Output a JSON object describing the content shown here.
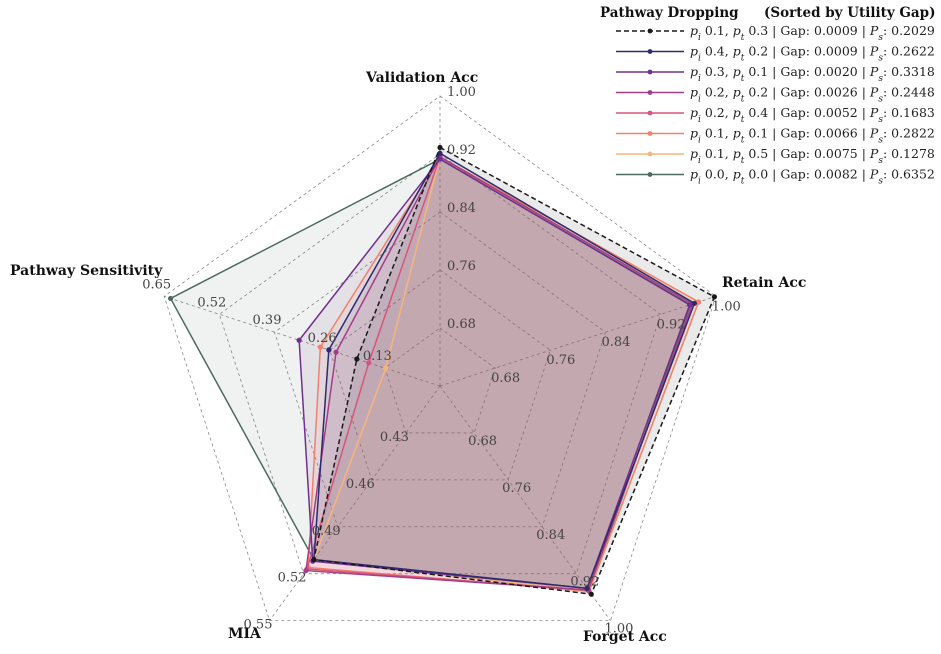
{
  "chart_data": {
    "type": "radar",
    "title": "",
    "legend": {
      "title": "Pathway Dropping",
      "subtitle": "(Sorted by Utility Gap)",
      "placement": "top-right"
    },
    "axes": [
      {
        "name": "Validation Acc",
        "ticks": [
          "0.68",
          "0.76",
          "0.84",
          "0.92",
          "1.00"
        ]
      },
      {
        "name": "Retain Acc",
        "ticks": [
          "0.68",
          "0.76",
          "0.84",
          "0.92",
          "1.00"
        ]
      },
      {
        "name": "Forget Acc",
        "ticks": [
          "0.68",
          "0.76",
          "0.84",
          "0.92",
          "1.00"
        ]
      },
      {
        "name": "MIA",
        "ticks": [
          "0.43",
          "0.46",
          "0.49",
          "0.52",
          "0.55"
        ]
      },
      {
        "name": "Pathway Sensitivity",
        "ticks": [
          "0.13",
          "0.26",
          "0.39",
          "0.52",
          "0.65"
        ]
      }
    ],
    "series": [
      {
        "name": "p_i 0.1, p_t 0.3 | Gap: 0.0009 | P_s: 0.2029",
        "pi": "0.1",
        "pt": "0.3",
        "gap": "0.0009",
        "ps": "0.2029",
        "color": "#1a1a1a",
        "dashed": true,
        "values": [
          0.929,
          0.998,
          0.955,
          0.511,
          0.196
        ]
      },
      {
        "name": "p_i 0.4, p_t 0.2 | Gap: 0.0009 | P_s: 0.2622",
        "pi": "0.4",
        "pt": "0.2",
        "gap": "0.0009",
        "ps": "0.2622",
        "color": "#2f2a6e",
        "dashed": false,
        "values": [
          0.921,
          0.969,
          0.945,
          0.511,
          0.262
        ]
      },
      {
        "name": "p_i 0.3, p_t 0.1 | Gap: 0.0020 | P_s: 0.3318",
        "pi": "0.3",
        "pt": "0.1",
        "gap": "0.0020",
        "ps": "0.3318",
        "color": "#70308c",
        "dashed": false,
        "values": [
          0.913,
          0.962,
          0.945,
          0.512,
          0.332
        ]
      },
      {
        "name": "p_i 0.2, p_t 0.2 | Gap: 0.0026 | P_s: 0.2448",
        "pi": "0.2",
        "pt": "0.2",
        "gap": "0.0026",
        "ps": "0.2448",
        "color": "#a53d88",
        "dashed": false,
        "values": [
          0.916,
          0.966,
          0.948,
          0.518,
          0.245
        ]
      },
      {
        "name": "p_i 0.2, p_t 0.4 | Gap: 0.0052 | P_s: 0.1683",
        "pi": "0.2",
        "pt": "0.4",
        "gap": "0.0052",
        "ps": "0.1683",
        "color": "#d8557a",
        "dashed": false,
        "values": [
          0.916,
          0.966,
          0.948,
          0.517,
          0.168
        ]
      },
      {
        "name": "p_i 0.1, p_t 0.1 | Gap: 0.0066 | P_s: 0.2822",
        "pi": "0.1",
        "pt": "0.1",
        "gap": "0.0066",
        "ps": "0.2822",
        "color": "#f0826a",
        "dashed": false,
        "values": [
          0.916,
          0.975,
          0.95,
          0.516,
          0.282
        ]
      },
      {
        "name": "p_i 0.1, p_t 0.5 | Gap: 0.0075 | P_s: 0.1278",
        "pi": "0.1",
        "pt": "0.5",
        "gap": "0.0075",
        "ps": "0.1278",
        "color": "#f6b57c",
        "dashed": false,
        "values": [
          0.916,
          0.975,
          0.95,
          0.511,
          0.128
        ]
      },
      {
        "name": "p_i 0.0, p_t 0.0 | Gap: 0.0082 | P_s: 0.6352",
        "pi": "0.0",
        "pt": "0.0",
        "gap": "0.0082",
        "ps": "0.6352",
        "color": "#4c6b5e",
        "dashed": false,
        "values": [
          0.913,
          0.963,
          0.95,
          0.511,
          0.635
        ]
      }
    ]
  }
}
